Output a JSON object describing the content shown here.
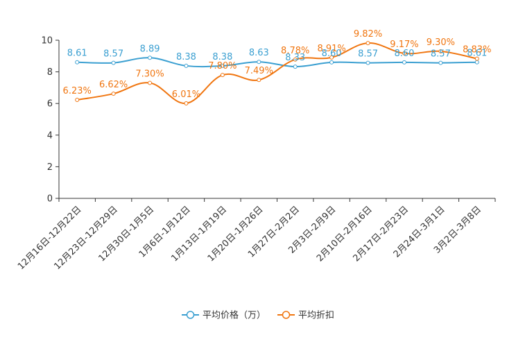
{
  "chart_data": {
    "type": "line",
    "title": "",
    "xlabel": "",
    "ylabel": "",
    "ylim": [
      0,
      10
    ],
    "yticks": [
      "0",
      "2",
      "4",
      "6",
      "8",
      "10"
    ],
    "categories": [
      "12月16日-12月22日",
      "12月23日-12月29日",
      "12月30日-1月5日",
      "1月6日-1月12日",
      "1月13日-1月19日",
      "1月20日-1月26日",
      "1月27日-2月2日",
      "2月3日-2月9日",
      "2月10日-2月16日",
      "2月17日-2月23日",
      "2月24日-3月1日",
      "3月2日-3月8日"
    ],
    "series": [
      {
        "name": "平均价格（万）",
        "color": "#3a9fd1",
        "values": [
          8.61,
          8.57,
          8.89,
          8.38,
          8.38,
          8.63,
          8.33,
          8.6,
          8.57,
          8.6,
          8.57,
          8.61
        ],
        "labels": [
          "8.61",
          "8.57",
          "8.89",
          "8.38",
          "8.38",
          "8.63",
          "8.33",
          "8.60",
          "8.57",
          "8.60",
          "8.57",
          "8.61"
        ]
      },
      {
        "name": "平均折扣",
        "color": "#f0750f",
        "values": [
          6.23,
          6.62,
          7.3,
          6.01,
          7.8,
          7.49,
          8.78,
          8.91,
          9.82,
          9.17,
          9.3,
          8.83
        ],
        "labels": [
          "6.23%",
          "6.62%",
          "7.30%",
          "6.01%",
          "7.80%",
          "7.49%",
          "8.78%",
          "8.91%",
          "9.82%",
          "9.17%",
          "9.30%",
          "8.83%"
        ]
      }
    ],
    "legend_position": "bottom-center",
    "grid": false
  }
}
